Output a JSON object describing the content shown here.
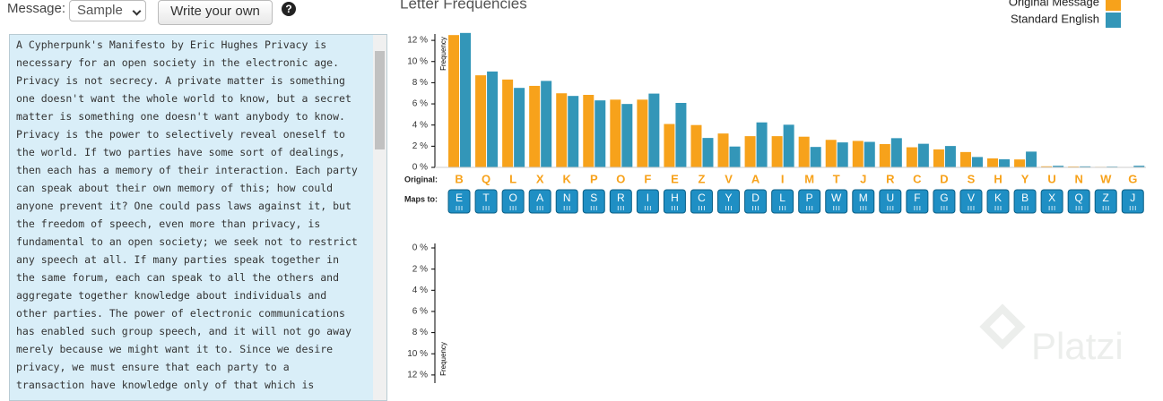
{
  "controls": {
    "message_label": "Message:",
    "select_value": "Sample",
    "button": "Write your own",
    "help": "?"
  },
  "message_lines": [
    "A Cypherpunk's Manifesto by Eric Hughes Privacy is",
    "necessary for an open society in the electronic age.",
    "Privacy is not secrecy. A private matter is something",
    "one doesn't want the whole world to know, but a secret",
    "matter is something one doesn't want anybody to know.",
    "Privacy is the power to selectively reveal oneself to",
    "the world. If two parties have some sort of dealings,",
    "then each has a memory of their interaction. Each party",
    "can speak about their own memory of this; how could",
    "anyone prevent it? One could pass laws against it, but",
    "the freedom of speech, even more than privacy, is",
    "fundamental to an open society; we seek not to restrict",
    "any speech at all. If many parties speak together in",
    "the same forum, each can speak to all the others and",
    "aggregate together knowledge about individuals and",
    "other parties. The power of electronic communications",
    "has enabled such group speech, and it will not go away",
    "merely because we might want it to. Since we desire",
    "privacy, we must ensure that each party to a",
    "transaction have knowledge only of that which is"
  ],
  "chart_data": [
    {
      "type": "bar",
      "title": "Letter Frequencies",
      "y_label": "Frequency",
      "categories": [
        "B",
        "Q",
        "L",
        "X",
        "K",
        "P",
        "O",
        "F",
        "E",
        "Z",
        "V",
        "A",
        "I",
        "M",
        "T",
        "J",
        "R",
        "C",
        "D",
        "S",
        "H",
        "Y",
        "U",
        "N",
        "W",
        "G"
      ],
      "series": [
        {
          "name": "Original Message",
          "color": "#f7a21b",
          "values": [
            12.5,
            8.7,
            8.3,
            7.7,
            7.0,
            6.85,
            6.4,
            6.4,
            4.1,
            4.0,
            3.2,
            2.95,
            2.95,
            2.9,
            2.6,
            2.5,
            2.2,
            1.9,
            1.7,
            1.45,
            0.85,
            0.75,
            0.1,
            0.08,
            0.05,
            0.03
          ]
        },
        {
          "name": "Standard English",
          "color": "#3396b8",
          "values": [
            12.7,
            9.06,
            7.51,
            8.17,
            6.75,
            6.33,
            5.99,
            6.97,
            6.09,
            2.78,
            1.97,
            4.25,
            4.03,
            1.93,
            2.36,
            2.41,
            2.76,
            2.23,
            2.02,
            0.98,
            0.77,
            1.49,
            0.15,
            0.095,
            0.074,
            0.153
          ]
        }
      ],
      "row_labels": {
        "original": "Original:",
        "maps_to": "Maps to:"
      },
      "mapped_letters": [
        "E",
        "T",
        "O",
        "A",
        "N",
        "S",
        "R",
        "I",
        "H",
        "C",
        "Y",
        "D",
        "L",
        "P",
        "W",
        "M",
        "U",
        "F",
        "G",
        "V",
        "K",
        "B",
        "X",
        "Q",
        "Z",
        "J"
      ],
      "ylim": [
        0,
        12.6
      ],
      "yticks": [
        {
          "value": 0,
          "label": "0 %"
        },
        {
          "value": 2,
          "label": "2 %"
        },
        {
          "value": 4,
          "label": "4 %"
        },
        {
          "value": 6,
          "label": "6 %"
        },
        {
          "value": 8,
          "label": "8 %"
        },
        {
          "value": 10,
          "label": "10 %"
        },
        {
          "value": 12,
          "label": "12 %"
        }
      ]
    },
    {
      "type": "bar",
      "y_label": "Frequency",
      "inverted": true,
      "ylim": [
        0,
        12.6
      ],
      "yticks": [
        {
          "value": 0,
          "label": "0 %"
        },
        {
          "value": 2,
          "label": "2 %"
        },
        {
          "value": 4,
          "label": "4 %"
        },
        {
          "value": 6,
          "label": "6 %"
        },
        {
          "value": 8,
          "label": "8 %"
        },
        {
          "value": 10,
          "label": "10 %"
        },
        {
          "value": 12,
          "label": "12 %"
        }
      ]
    }
  ],
  "watermark": "Platzi"
}
